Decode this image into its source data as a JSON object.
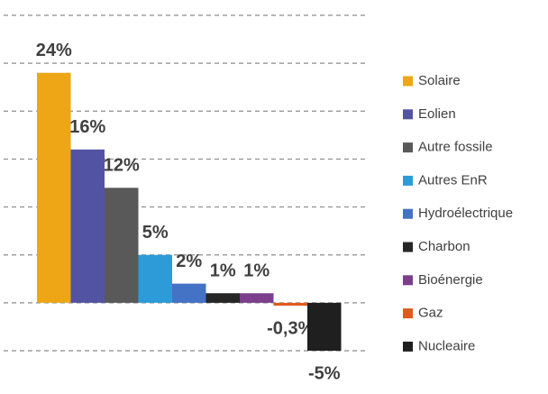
{
  "chart_data": {
    "type": "bar",
    "categories": [
      "Solaire",
      "Eolien",
      "Autre fossile",
      "Autres EnR",
      "Hydroélectrique",
      "Charbon",
      "Bioénergie",
      "Gaz",
      "Nucleaire"
    ],
    "values": [
      24,
      16,
      12,
      5,
      2,
      1,
      1,
      -0.3,
      -5
    ],
    "value_labels": [
      "24%",
      "16%",
      "12%",
      "5%",
      "2%",
      "1%",
      "1%",
      "-0,3%",
      "-5%"
    ],
    "colors": [
      "#eea616",
      "#5254a3",
      "#595959",
      "#2e9bd9",
      "#4472c4",
      "#262626",
      "#7b3f8c",
      "#e05a1e",
      "#1f1f1f"
    ],
    "ylim": [
      -5,
      30
    ],
    "yticks": [
      -5,
      0,
      5,
      10,
      15,
      20,
      25,
      30
    ],
    "grid": true,
    "legend": "right"
  }
}
